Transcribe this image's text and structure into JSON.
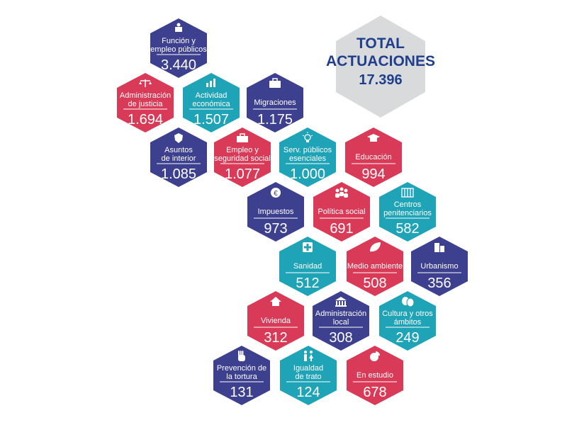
{
  "chart_data": {
    "type": "table",
    "title": "TOTAL ACTUACIONES",
    "total": "17.396",
    "colors": {
      "navy": "#3d3f8f",
      "red": "#d93a57",
      "teal": "#1fa3b7",
      "grey": "#d9dadc",
      "title": "#1f3f8c"
    },
    "cells": [
      {
        "label": [
          "Función y",
          "empleo públicos"
        ],
        "value": "3.440",
        "color": "navy",
        "icon": "meeting-podium-icon"
      },
      {
        "label": [
          "Administración",
          "de justicia"
        ],
        "value": "1.694",
        "color": "red",
        "icon": "scales-icon"
      },
      {
        "label": [
          "Actividad",
          "económica"
        ],
        "value": "1.507",
        "color": "teal",
        "icon": "bar-chart-icon"
      },
      {
        "label": [
          "Migraciones"
        ],
        "value": "1.175",
        "color": "navy",
        "icon": "suitcase-icon"
      },
      {
        "label": [
          "Asuntos",
          "de interior"
        ],
        "value": "1.085",
        "color": "navy",
        "icon": "police-badge-icon"
      },
      {
        "label": [
          "Empleo y",
          "seguridad social"
        ],
        "value": "1.077",
        "color": "red",
        "icon": "toolbox-icon"
      },
      {
        "label": [
          "Serv. públicos",
          "esenciales"
        ],
        "value": "1.000",
        "color": "teal",
        "icon": "light-bulb-icon"
      },
      {
        "label": [
          "Educación"
        ],
        "value": "994",
        "color": "red",
        "icon": "graduation-cap-icon"
      },
      {
        "label": [
          "Impuestos"
        ],
        "value": "973",
        "color": "navy",
        "icon": "euro-coin-icon"
      },
      {
        "label": [
          "Política social"
        ],
        "value": "691",
        "color": "red",
        "icon": "people-group-icon"
      },
      {
        "label": [
          "Centros",
          "penitenciarios"
        ],
        "value": "582",
        "color": "teal",
        "icon": "prison-bars-icon"
      },
      {
        "label": [
          "Sanidad"
        ],
        "value": "512",
        "color": "teal",
        "icon": "first-aid-icon"
      },
      {
        "label": [
          "Medio ambiente"
        ],
        "value": "508",
        "color": "red",
        "icon": "leaf-icon"
      },
      {
        "label": [
          "Urbanismo"
        ],
        "value": "356",
        "color": "navy",
        "icon": "buildings-icon"
      },
      {
        "label": [
          "Vivienda"
        ],
        "value": "312",
        "color": "red",
        "icon": "house-icon"
      },
      {
        "label": [
          "Administración",
          "local"
        ],
        "value": "308",
        "color": "navy",
        "icon": "town-hall-icon"
      },
      {
        "label": [
          "Cultura y otros",
          "ámbitos"
        ],
        "value": "249",
        "color": "teal",
        "icon": "theater-masks-icon"
      },
      {
        "label": [
          "Prevención de",
          "la tortura"
        ],
        "value": "131",
        "color": "navy",
        "icon": "stop-hand-icon"
      },
      {
        "label": [
          "Igualdad",
          "de trato"
        ],
        "value": "124",
        "color": "teal",
        "icon": "man-woman-icon"
      },
      {
        "label": [
          "En estudio"
        ],
        "value": "678",
        "color": "red",
        "icon": "pie-chart-icon"
      }
    ]
  }
}
